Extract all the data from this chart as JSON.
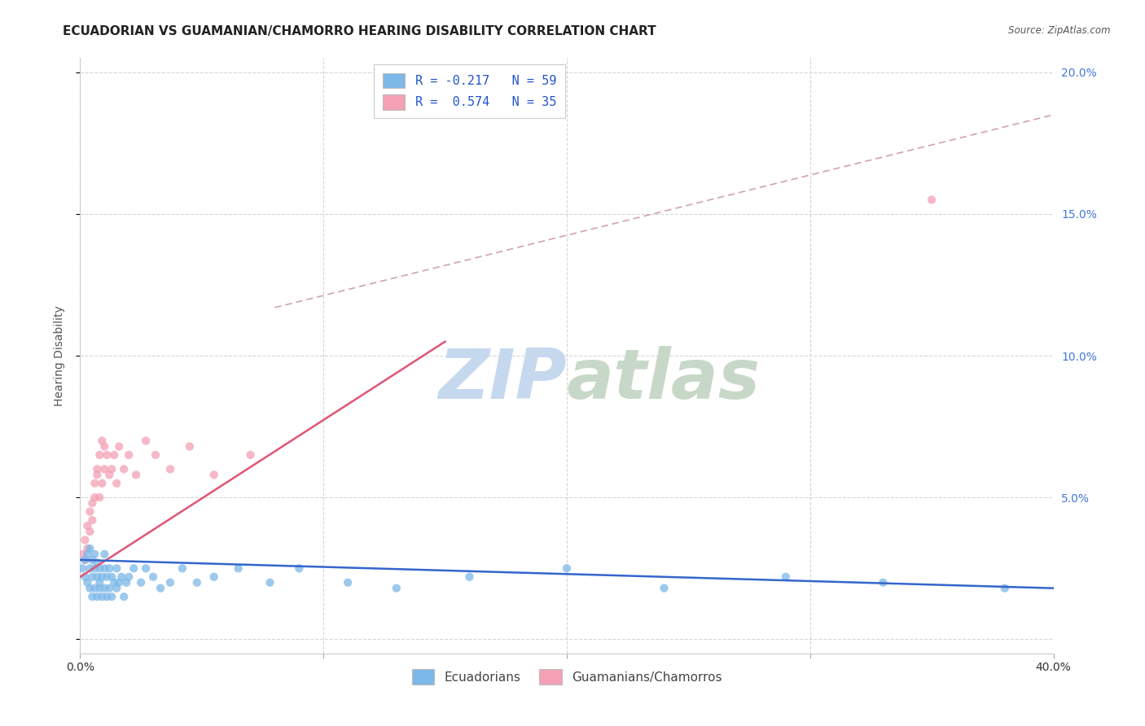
{
  "title": "ECUADORIAN VS GUAMANIAN/CHAMORRO HEARING DISABILITY CORRELATION CHART",
  "source": "Source: ZipAtlas.com",
  "ylabel": "Hearing Disability",
  "xlim": [
    0.0,
    0.4
  ],
  "ylim": [
    -0.005,
    0.205
  ],
  "blue_color": "#7cb8e8",
  "pink_color": "#f4a0b5",
  "blue_line_color": "#3366cc",
  "pink_line_color": "#e05575",
  "dashed_line_color": "#d4a0b0",
  "grid_color": "#cccccc",
  "R_blue": -0.217,
  "N_blue": 59,
  "R_pink": 0.574,
  "N_pink": 35,
  "blue_scatter_x": [
    0.001,
    0.002,
    0.002,
    0.003,
    0.003,
    0.004,
    0.004,
    0.004,
    0.005,
    0.005,
    0.005,
    0.006,
    0.006,
    0.006,
    0.007,
    0.007,
    0.007,
    0.008,
    0.008,
    0.008,
    0.009,
    0.009,
    0.01,
    0.01,
    0.01,
    0.011,
    0.011,
    0.012,
    0.012,
    0.013,
    0.013,
    0.014,
    0.015,
    0.015,
    0.016,
    0.017,
    0.018,
    0.019,
    0.02,
    0.022,
    0.025,
    0.027,
    0.03,
    0.033,
    0.037,
    0.042,
    0.048,
    0.055,
    0.065,
    0.078,
    0.09,
    0.11,
    0.13,
    0.16,
    0.2,
    0.24,
    0.29,
    0.33,
    0.38
  ],
  "blue_scatter_y": [
    0.025,
    0.022,
    0.028,
    0.02,
    0.03,
    0.018,
    0.025,
    0.032,
    0.015,
    0.022,
    0.028,
    0.018,
    0.025,
    0.03,
    0.015,
    0.022,
    0.027,
    0.018,
    0.025,
    0.02,
    0.015,
    0.022,
    0.018,
    0.025,
    0.03,
    0.015,
    0.022,
    0.018,
    0.025,
    0.015,
    0.022,
    0.02,
    0.018,
    0.025,
    0.02,
    0.022,
    0.015,
    0.02,
    0.022,
    0.025,
    0.02,
    0.025,
    0.022,
    0.018,
    0.02,
    0.025,
    0.02,
    0.022,
    0.025,
    0.02,
    0.025,
    0.02,
    0.018,
    0.022,
    0.025,
    0.018,
    0.022,
    0.02,
    0.018
  ],
  "pink_scatter_x": [
    0.001,
    0.002,
    0.002,
    0.003,
    0.003,
    0.004,
    0.004,
    0.005,
    0.005,
    0.006,
    0.006,
    0.007,
    0.007,
    0.008,
    0.008,
    0.009,
    0.009,
    0.01,
    0.01,
    0.011,
    0.012,
    0.013,
    0.014,
    0.015,
    0.016,
    0.018,
    0.02,
    0.023,
    0.027,
    0.031,
    0.037,
    0.045,
    0.055,
    0.07,
    0.35
  ],
  "pink_scatter_y": [
    0.03,
    0.028,
    0.035,
    0.032,
    0.04,
    0.038,
    0.045,
    0.042,
    0.048,
    0.05,
    0.055,
    0.058,
    0.06,
    0.05,
    0.065,
    0.055,
    0.07,
    0.06,
    0.068,
    0.065,
    0.058,
    0.06,
    0.065,
    0.055,
    0.068,
    0.06,
    0.065,
    0.058,
    0.07,
    0.065,
    0.06,
    0.068,
    0.058,
    0.065,
    0.155
  ],
  "pink_line_x0": 0.0,
  "pink_line_y0": 0.022,
  "pink_line_x1": 0.15,
  "pink_line_y1": 0.105,
  "dashed_line_x0": 0.08,
  "dashed_line_y0": 0.117,
  "dashed_line_x1": 0.4,
  "dashed_line_y1": 0.185,
  "blue_line_x0": 0.0,
  "blue_line_y0": 0.028,
  "blue_line_x1": 0.4,
  "blue_line_y1": 0.018,
  "background_color": "#ffffff",
  "legend_fontsize": 11,
  "title_fontsize": 11,
  "axis_fontsize": 10
}
